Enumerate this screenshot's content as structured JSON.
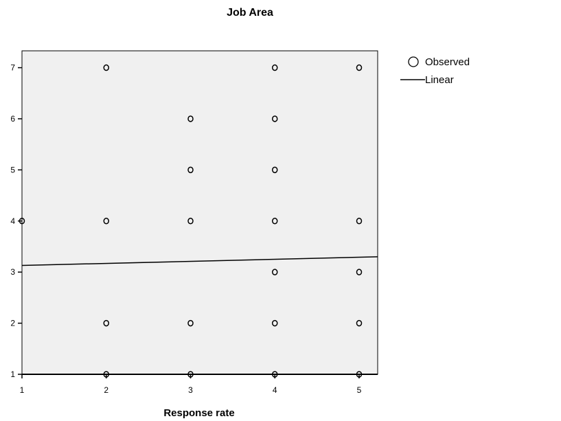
{
  "chart_data": {
    "type": "scatter",
    "title": "Job Area",
    "xlabel": "Response rate",
    "ylabel": "",
    "xlim": [
      1,
      5.22
    ],
    "ylim": [
      1,
      7.33
    ],
    "xticks": [
      "1",
      "2",
      "3",
      "4",
      "5"
    ],
    "yticks": [
      "1",
      "2",
      "3",
      "4",
      "5",
      "6",
      "7"
    ],
    "grid": false,
    "legend_position": "top-right",
    "plot_background": "#f0f0f0",
    "series": [
      {
        "name": "Observed",
        "marker": "open-circle",
        "points": [
          {
            "x": 1,
            "y": 4
          },
          {
            "x": 2,
            "y": 1
          },
          {
            "x": 2,
            "y": 2
          },
          {
            "x": 2,
            "y": 4
          },
          {
            "x": 2,
            "y": 7
          },
          {
            "x": 3,
            "y": 1
          },
          {
            "x": 3,
            "y": 2
          },
          {
            "x": 3,
            "y": 4
          },
          {
            "x": 3,
            "y": 5
          },
          {
            "x": 3,
            "y": 6
          },
          {
            "x": 4,
            "y": 1
          },
          {
            "x": 4,
            "y": 2
          },
          {
            "x": 4,
            "y": 3
          },
          {
            "x": 4,
            "y": 4
          },
          {
            "x": 4,
            "y": 5
          },
          {
            "x": 4,
            "y": 6
          },
          {
            "x": 4,
            "y": 7
          },
          {
            "x": 5,
            "y": 1
          },
          {
            "x": 5,
            "y": 2
          },
          {
            "x": 5,
            "y": 3
          },
          {
            "x": 5,
            "y": 4
          },
          {
            "x": 5,
            "y": 7
          }
        ]
      },
      {
        "name": "Linear",
        "type": "line",
        "points": [
          {
            "x": 1,
            "y": 3.13
          },
          {
            "x": 5.22,
            "y": 3.3
          }
        ]
      }
    ],
    "legend": [
      {
        "label": "Observed",
        "symbol": "open-circle"
      },
      {
        "label": "Linear",
        "symbol": "line"
      }
    ]
  }
}
